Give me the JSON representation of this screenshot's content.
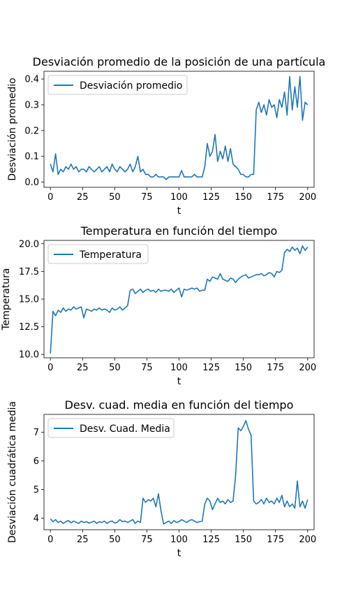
{
  "chart_data": [
    {
      "type": "line",
      "title": "Desviación promedio de la posición de una partícula",
      "xlabel": "t",
      "ylabel": "Desviación promedio",
      "xlim": [
        -5,
        205
      ],
      "ylim": [
        -0.02,
        0.43
      ],
      "xticks": [
        "0",
        "25",
        "50",
        "75",
        "100",
        "125",
        "150",
        "175",
        "200"
      ],
      "yticks": [
        "0.0",
        "0.1",
        "0.2",
        "0.3",
        "0.4"
      ],
      "legend": "upper-left",
      "series": [
        {
          "name": "Desviación promedio",
          "color": "#1f77b4",
          "x": [
            0,
            2,
            4,
            6,
            8,
            10,
            12,
            14,
            16,
            18,
            20,
            22,
            24,
            26,
            28,
            30,
            32,
            34,
            36,
            38,
            40,
            42,
            44,
            46,
            48,
            50,
            52,
            54,
            56,
            58,
            60,
            62,
            64,
            66,
            68,
            70,
            72,
            74,
            76,
            78,
            80,
            82,
            84,
            86,
            88,
            90,
            92,
            94,
            96,
            98,
            100,
            102,
            104,
            106,
            108,
            110,
            112,
            114,
            116,
            118,
            120,
            122,
            124,
            126,
            128,
            130,
            132,
            134,
            136,
            138,
            140,
            142,
            144,
            146,
            148,
            150,
            152,
            154,
            156,
            158,
            160,
            162,
            164,
            166,
            168,
            170,
            172,
            174,
            176,
            178,
            180,
            182,
            184,
            186,
            188,
            190,
            192,
            194,
            196,
            198,
            200
          ],
          "y": [
            0.07,
            0.04,
            0.11,
            0.03,
            0.05,
            0.04,
            0.06,
            0.05,
            0.07,
            0.05,
            0.06,
            0.04,
            0.05,
            0.05,
            0.04,
            0.06,
            0.05,
            0.04,
            0.05,
            0.06,
            0.04,
            0.05,
            0.06,
            0.04,
            0.07,
            0.05,
            0.04,
            0.06,
            0.05,
            0.04,
            0.05,
            0.07,
            0.04,
            0.06,
            0.1,
            0.04,
            0.05,
            0.03,
            0.03,
            0.02,
            0.02,
            0.03,
            0.02,
            0.02,
            0.02,
            0.01,
            0.02,
            0.02,
            0.02,
            0.02,
            0.02,
            0.045,
            0.02,
            0.02,
            0.02,
            0.02,
            0.03,
            0.02,
            0.02,
            0.02,
            0.06,
            0.15,
            0.1,
            0.12,
            0.185,
            0.08,
            0.12,
            0.09,
            0.14,
            0.08,
            0.13,
            0.07,
            0.06,
            0.05,
            0.03,
            0.03,
            0.02,
            0.02,
            0.03,
            0.03,
            0.28,
            0.31,
            0.27,
            0.3,
            0.26,
            0.32,
            0.29,
            0.3,
            0.25,
            0.32,
            0.29,
            0.35,
            0.26,
            0.41,
            0.28,
            0.37,
            0.29,
            0.41,
            0.24,
            0.31,
            0.3
          ]
        }
      ]
    },
    {
      "type": "line",
      "title": "Temperatura en función del tiempo",
      "xlabel": "t",
      "ylabel": "Temperatura",
      "xlim": [
        -5,
        205
      ],
      "ylim": [
        9.7,
        20.3
      ],
      "xticks": [
        "0",
        "25",
        "50",
        "75",
        "100",
        "125",
        "150",
        "175",
        "200"
      ],
      "yticks": [
        "10.0",
        "12.5",
        "15.0",
        "17.5",
        "20.0"
      ],
      "legend": "upper-left",
      "series": [
        {
          "name": "Temperatura",
          "color": "#1f77b4",
          "x": [
            0,
            2,
            4,
            6,
            8,
            10,
            12,
            14,
            16,
            18,
            20,
            22,
            24,
            26,
            28,
            30,
            32,
            34,
            36,
            38,
            40,
            42,
            44,
            46,
            48,
            50,
            52,
            54,
            56,
            58,
            60,
            62,
            64,
            66,
            68,
            70,
            72,
            74,
            76,
            78,
            80,
            82,
            84,
            86,
            88,
            90,
            92,
            94,
            96,
            98,
            100,
            102,
            104,
            106,
            108,
            110,
            112,
            114,
            116,
            118,
            120,
            122,
            124,
            126,
            128,
            130,
            132,
            134,
            136,
            138,
            140,
            142,
            144,
            146,
            148,
            150,
            152,
            154,
            156,
            158,
            160,
            162,
            164,
            166,
            168,
            170,
            172,
            174,
            176,
            178,
            180,
            182,
            184,
            186,
            188,
            190,
            192,
            194,
            196,
            198,
            200
          ],
          "y": [
            10.1,
            13.9,
            13.5,
            14.0,
            13.8,
            14.2,
            13.9,
            14.1,
            14.0,
            14.3,
            14.1,
            14.2,
            14.3,
            13.3,
            14.1,
            14.0,
            13.9,
            14.1,
            14.0,
            14.2,
            14.0,
            14.1,
            14.0,
            13.8,
            14.2,
            14.0,
            14.1,
            14.3,
            14.0,
            14.2,
            14.4,
            15.8,
            15.9,
            15.5,
            15.7,
            15.9,
            15.6,
            15.8,
            15.9,
            15.7,
            15.8,
            15.6,
            15.9,
            15.7,
            15.8,
            15.8,
            15.7,
            15.9,
            15.6,
            15.8,
            16.0,
            15.2,
            15.9,
            15.8,
            15.9,
            16.0,
            15.9,
            16.0,
            15.7,
            15.8,
            15.8,
            16.8,
            16.6,
            17.0,
            16.9,
            16.8,
            17.3,
            16.8,
            16.7,
            16.6,
            16.9,
            16.8,
            16.5,
            16.8,
            17.0,
            17.1,
            17.2,
            16.9,
            17.0,
            17.1,
            17.2,
            17.2,
            17.3,
            17.1,
            17.2,
            17.4,
            17.3,
            17.0,
            17.5,
            17.4,
            17.6,
            19.2,
            19.5,
            19.3,
            19.7,
            19.4,
            19.6,
            19.1,
            19.8,
            19.4,
            19.7
          ]
        }
      ]
    },
    {
      "type": "line",
      "title": "Desv. cuad. media en función del tiempo",
      "xlabel": "t",
      "ylabel": "Desviación cuadrática media",
      "xlim": [
        -5,
        205
      ],
      "ylim": [
        3.6,
        7.62
      ],
      "xticks": [
        "0",
        "25",
        "50",
        "75",
        "100",
        "125",
        "150",
        "175",
        "200"
      ],
      "yticks": [
        "4",
        "5",
        "6",
        "7"
      ],
      "legend": "upper-left",
      "series": [
        {
          "name": "Desv. Cuad. Media",
          "color": "#1f77b4",
          "x": [
            0,
            2,
            4,
            6,
            8,
            10,
            12,
            14,
            16,
            18,
            20,
            22,
            24,
            26,
            28,
            30,
            32,
            34,
            36,
            38,
            40,
            42,
            44,
            46,
            48,
            50,
            52,
            54,
            56,
            58,
            60,
            62,
            64,
            66,
            68,
            70,
            72,
            74,
            76,
            78,
            80,
            82,
            84,
            86,
            88,
            90,
            92,
            94,
            96,
            98,
            100,
            102,
            104,
            106,
            108,
            110,
            112,
            114,
            116,
            118,
            120,
            122,
            124,
            126,
            128,
            130,
            132,
            134,
            136,
            138,
            140,
            142,
            144,
            146,
            148,
            150,
            152,
            154,
            156,
            158,
            160,
            162,
            164,
            166,
            168,
            170,
            172,
            174,
            176,
            178,
            180,
            182,
            184,
            186,
            188,
            190,
            192,
            194,
            196,
            198,
            200
          ],
          "y": [
            3.98,
            3.88,
            3.95,
            3.85,
            3.9,
            3.82,
            3.88,
            3.92,
            3.84,
            3.9,
            3.86,
            3.82,
            3.9,
            3.85,
            3.88,
            3.83,
            3.86,
            3.9,
            3.82,
            3.88,
            3.85,
            3.9,
            3.82,
            3.88,
            3.9,
            3.83,
            3.86,
            3.95,
            3.88,
            3.9,
            3.85,
            3.9,
            3.95,
            3.82,
            3.9,
            3.85,
            4.7,
            4.55,
            4.65,
            4.6,
            4.7,
            4.4,
            4.85,
            4.25,
            3.8,
            3.85,
            3.9,
            3.82,
            3.92,
            3.85,
            3.88,
            3.95,
            3.9,
            3.85,
            3.92,
            3.95,
            3.9,
            3.85,
            3.88,
            3.9,
            4.5,
            4.7,
            4.6,
            4.3,
            4.5,
            4.7,
            4.55,
            4.6,
            4.5,
            4.65,
            4.55,
            4.6,
            5.5,
            7.15,
            7.05,
            7.2,
            7.4,
            7.1,
            6.9,
            4.6,
            4.5,
            4.55,
            4.65,
            4.5,
            4.7,
            4.55,
            4.6,
            4.5,
            4.7,
            4.55,
            4.8,
            4.4,
            4.6,
            4.4,
            4.5,
            4.35,
            5.3,
            4.4,
            4.6,
            4.35,
            4.65
          ]
        }
      ]
    }
  ]
}
